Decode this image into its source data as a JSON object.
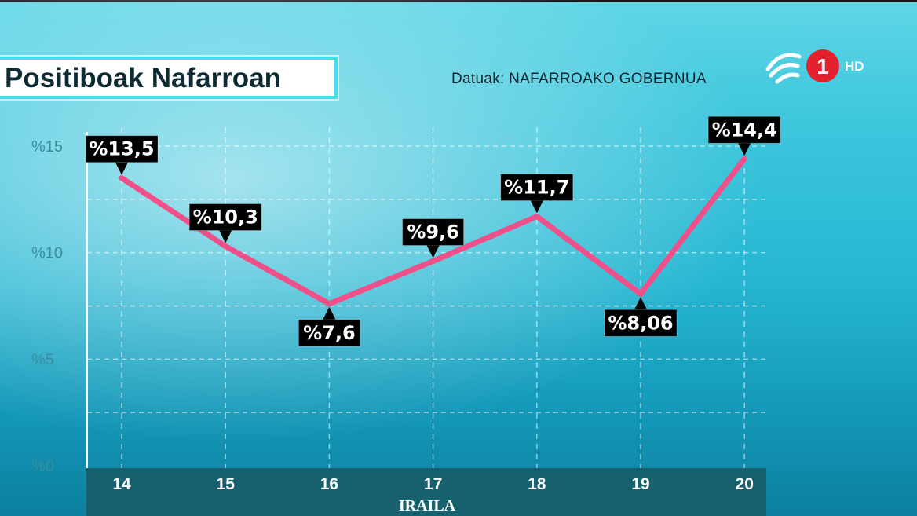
{
  "title": "Positiboak Nafarroan",
  "source": "Datuak: NAFARROAKO GOBERNUA",
  "logo": {
    "icon": "eitb-logo",
    "channel": "1",
    "hd": "HD"
  },
  "colors": {
    "line": "#f0508a",
    "label_bg": "#000000",
    "accent": "#3ee0ea",
    "logo_red": "#e3202e"
  },
  "chart_data": {
    "type": "line",
    "title": "Positiboak Nafarroan",
    "xlabel": "IRAILA",
    "ylabel": "",
    "categories": [
      "14",
      "15",
      "16",
      "17",
      "18",
      "19",
      "20"
    ],
    "values": [
      13.5,
      10.3,
      7.6,
      9.6,
      11.7,
      8.06,
      14.4
    ],
    "data_labels": [
      "%13,5",
      "%10,3",
      "%7,6",
      "%9,6",
      "%11,7",
      "%8,06",
      "%14,4"
    ],
    "label_position": [
      "above",
      "above",
      "below",
      "above",
      "above",
      "below",
      "above"
    ],
    "yticks": [
      0,
      5,
      10,
      15
    ],
    "ytick_labels": [
      "%0",
      "%5",
      "%10",
      "%15"
    ],
    "ylim": [
      0,
      15
    ],
    "grid": true
  }
}
